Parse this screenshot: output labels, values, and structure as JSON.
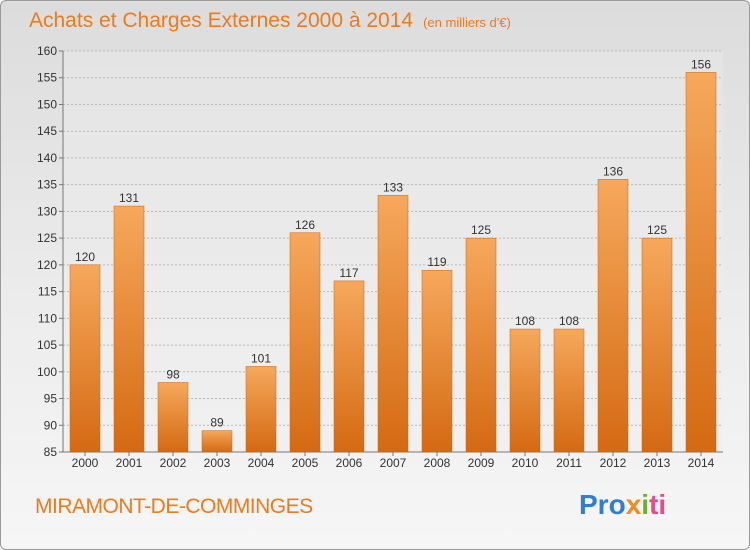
{
  "header": {
    "title": "Achats et Charges Externes 2000 à 2014",
    "subtitle": "(en milliers d'€)"
  },
  "footer": {
    "place": "MIRAMONT-DE-COMMINGES",
    "logo": [
      "Pro",
      "x",
      "i",
      "ti"
    ]
  },
  "colors": {
    "title": "#ee7a1a",
    "bar_top": "#f6a85c",
    "bar_bottom": "#d46a12",
    "grid": "#b9b9b9"
  },
  "chart_data": {
    "type": "bar",
    "categories": [
      "2000",
      "2001",
      "2002",
      "2003",
      "2004",
      "2005",
      "2006",
      "2007",
      "2008",
      "2009",
      "2010",
      "2011",
      "2012",
      "2013",
      "2014"
    ],
    "values": [
      120,
      131,
      98,
      89,
      101,
      126,
      117,
      133,
      119,
      125,
      108,
      108,
      136,
      125,
      156
    ],
    "ylim": [
      85,
      160
    ],
    "yticks": [
      85,
      90,
      95,
      100,
      105,
      110,
      115,
      120,
      125,
      130,
      135,
      140,
      145,
      150,
      155,
      160
    ],
    "grid": true
  }
}
